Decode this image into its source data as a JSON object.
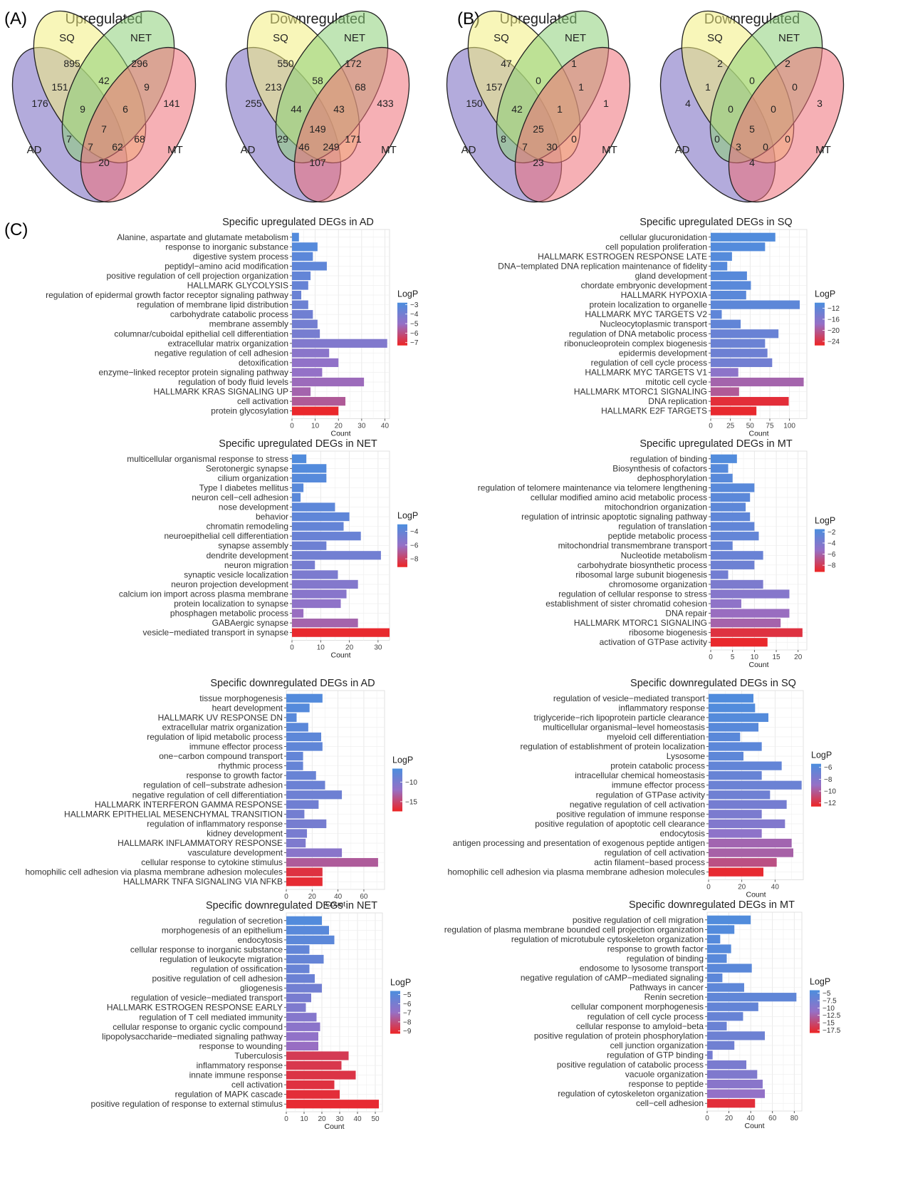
{
  "panel_labels": [
    "(A)",
    "(B)",
    "(C)"
  ],
  "venns": [
    {
      "title": "Upregulated",
      "set_labels": {
        "sq": "SQ",
        "net": "NET",
        "ad": "AD",
        "mt": "MT"
      },
      "regions": {
        "sq": "895",
        "net": "296",
        "ad": "176",
        "mt": "141",
        "ad_sq": "151",
        "sq_net": "42",
        "net_mt": "9",
        "ad_mt": "20",
        "ad_net": "7",
        "sq_mt": "68",
        "ad_sq_net": "9",
        "sq_net_mt": "6",
        "ad_net_mt": "7",
        "ad_sq_mt": "62",
        "all": "7"
      }
    },
    {
      "title": "Downregulated",
      "set_labels": {
        "sq": "SQ",
        "net": "NET",
        "ad": "AD",
        "mt": "MT"
      },
      "regions": {
        "sq": "550",
        "net": "172",
        "ad": "255",
        "mt": "433",
        "ad_sq": "213",
        "sq_net": "58",
        "net_mt": "68",
        "ad_mt": "107",
        "ad_net": "29",
        "sq_mt": "171",
        "ad_sq_net": "44",
        "sq_net_mt": "43",
        "ad_net_mt": "46",
        "ad_sq_mt": "249",
        "all": "149"
      }
    },
    {
      "title": "Upregulated",
      "set_labels": {
        "sq": "SQ",
        "net": "NET",
        "ad": "AD",
        "mt": "MT"
      },
      "regions": {
        "sq": "47",
        "net": "1",
        "ad": "150",
        "mt": "1",
        "ad_sq": "157",
        "sq_net": "0",
        "net_mt": "1",
        "ad_mt": "23",
        "ad_net": "8",
        "sq_mt": "0",
        "ad_sq_net": "42",
        "sq_net_mt": "1",
        "ad_net_mt": "7",
        "ad_sq_mt": "30",
        "all": "25"
      }
    },
    {
      "title": "Downregulated",
      "set_labels": {
        "sq": "SQ",
        "net": "NET",
        "ad": "AD",
        "mt": "MT"
      },
      "regions": {
        "sq": "2",
        "net": "2",
        "ad": "4",
        "mt": "3",
        "ad_sq": "1",
        "sq_net": "0",
        "net_mt": "0",
        "ad_mt": "4",
        "ad_net": "0",
        "sq_mt": "0",
        "ad_sq_net": "0",
        "sq_net_mt": "0",
        "ad_net_mt": "3",
        "ad_sq_mt": "0",
        "all": "5"
      }
    }
  ],
  "chart_data": [
    {
      "type": "bar",
      "orientation": "horizontal",
      "title": "Specific upregulated DEGs in AD",
      "xlabel": "Count",
      "xlim": [
        0,
        42
      ],
      "xticks": [
        0,
        10,
        20,
        30,
        40
      ],
      "legend": {
        "title": "LogP",
        "ticks": [
          -3,
          -4,
          -5,
          -6,
          -7
        ],
        "range": [
          -7.3,
          -2.8
        ]
      },
      "categories": [
        "Alanine, aspartate and glutamate metabolism",
        "response to inorganic substance",
        "digestive system process",
        "peptidyl−amino acid modification",
        "positive regulation of cell projection organization",
        "HALLMARK GLYCOLYSIS",
        "regulation of epidermal growth factor receptor signaling pathway",
        "regulation of membrane lipid distribution",
        "carbohydrate catabolic process",
        "membrane assembly",
        "columnar/cuboidal epithelial cell differentiation",
        "extracellular matrix organization",
        "negative regulation of cell adhesion",
        "detoxification",
        "enzyme−linked receptor protein signaling pathway",
        "regulation of body fluid levels",
        "HALLMARK KRAS SIGNALING UP",
        "cell activation",
        "protein glycosylation"
      ],
      "values": [
        3,
        11,
        9,
        15,
        8,
        7,
        4,
        7,
        9,
        11,
        12,
        41,
        16,
        20,
        13,
        31,
        8,
        23,
        20
      ],
      "logp": [
        -3.0,
        -3.1,
        -3.3,
        -3.4,
        -3.5,
        -3.6,
        -3.7,
        -3.8,
        -3.9,
        -4.0,
        -4.1,
        -4.4,
        -4.7,
        -4.9,
        -5.0,
        -5.2,
        -5.4,
        -5.7,
        -7.2
      ]
    },
    {
      "type": "bar",
      "orientation": "horizontal",
      "title": "Specific upregulated DEGs in SQ",
      "xlabel": "Count",
      "xlim": [
        0,
        122
      ],
      "xticks": [
        0,
        25,
        50,
        75,
        100
      ],
      "legend": {
        "title": "LogP",
        "ticks": [
          -12,
          -16,
          -20,
          -24
        ],
        "range": [
          -25.5,
          -10
        ]
      },
      "categories": [
        "cellular glucuronidation",
        "cell population proliferation",
        "HALLMARK ESTROGEN RESPONSE LATE",
        "DNA−templated DNA replication maintenance of fidelity",
        "gland development",
        "chordate embryonic development",
        "HALLMARK HYPOXIA",
        "protein localization to organelle",
        "HALLMARK MYC TARGETS V2",
        "Nucleocytoplasmic transport",
        "regulation of DNA metabolic process",
        "ribonucleoprotein complex biogenesis",
        "epidermis development",
        "regulation of cell cycle process",
        "HALLMARK MYC TARGETS V1",
        "mitotic cell cycle",
        "HALLMARK MTORC1 SIGNALING",
        "DNA replication",
        "HALLMARK E2F TARGETS"
      ],
      "values": [
        82,
        69,
        27,
        21,
        46,
        51,
        45,
        113,
        14,
        38,
        86,
        69,
        72,
        78,
        35,
        118,
        36,
        99,
        58
      ],
      "logp": [
        -10.5,
        -10.7,
        -10.9,
        -11.0,
        -11.2,
        -11.4,
        -11.5,
        -11.8,
        -12.0,
        -12.2,
        -13.0,
        -13.2,
        -13.5,
        -14.0,
        -16.8,
        -19.0,
        -20.0,
        -24.5,
        -25.0
      ]
    },
    {
      "type": "bar",
      "orientation": "horizontal",
      "title": "Specific upregulated DEGs in NET",
      "xlabel": "Count",
      "xlim": [
        0,
        34
      ],
      "xticks": [
        0,
        10,
        20,
        30
      ],
      "legend": {
        "title": "LogP",
        "ticks": [
          -4,
          -6,
          -8
        ],
        "range": [
          -9.2,
          -3.0
        ]
      },
      "categories": [
        "multicellular organismal response to stress",
        "Serotonergic synapse",
        "cilium organization",
        "Type I diabetes mellitus",
        "neuron cell−cell adhesion",
        "nose development",
        "behavior",
        "chromatin remodeling",
        "neuroepithelial cell differentiation",
        "synapse assembly",
        "dendrite development",
        "neuron migration",
        "synaptic vesicle localization",
        "neuron projection development",
        "calcium ion import across plasma membrane",
        "protein localization to synapse",
        "phosphagen metabolic process",
        "GABAergic synapse",
        "vesicle−mediated transport in synapse"
      ],
      "values": [
        5,
        12,
        12,
        4,
        3,
        15,
        20,
        18,
        24,
        12,
        31,
        8,
        16,
        23,
        19,
        17,
        4,
        23,
        34
      ],
      "logp": [
        -3.2,
        -3.3,
        -3.4,
        -3.5,
        -3.6,
        -3.7,
        -3.8,
        -4.0,
        -4.2,
        -4.4,
        -4.6,
        -4.8,
        -5.0,
        -5.3,
        -5.5,
        -5.8,
        -6.2,
        -6.6,
        -9.0
      ]
    },
    {
      "type": "bar",
      "orientation": "horizontal",
      "title": "Specific upregulated DEGs in MT",
      "xlabel": "Count",
      "xlim": [
        0,
        22
      ],
      "xticks": [
        0,
        5,
        10,
        15,
        20
      ],
      "legend": {
        "title": "LogP",
        "ticks": [
          -2,
          -4,
          -6,
          -8
        ],
        "range": [
          -9.2,
          -1.5
        ]
      },
      "categories": [
        "regulation of binding",
        "Biosynthesis of cofactors",
        "dephosphorylation",
        "regulation of telomere maintenance via telomere lengthening",
        "cellular modified amino acid metabolic process",
        "mitochondrion organization",
        "regulation of intrinsic apoptotic signaling pathway",
        "regulation of translation",
        "peptide metabolic process",
        "mitochondrial transmembrane transport",
        "Nucleotide metabolism",
        "carbohydrate biosynthetic process",
        "ribosomal large subunit biogenesis",
        "chromosome organization",
        "regulation of cellular response to stress",
        "establishment of sister chromatid cohesion",
        "DNA repair",
        "HALLMARK MTORC1 SIGNALING",
        "ribosome biogenesis",
        "activation of GTPase activity"
      ],
      "values": [
        6,
        4,
        5,
        10,
        9,
        8,
        9,
        10,
        11,
        5,
        12,
        10,
        4,
        12,
        18,
        7,
        18,
        16,
        21,
        13
      ],
      "logp": [
        -1.8,
        -2.0,
        -2.1,
        -2.2,
        -2.3,
        -2.4,
        -2.5,
        -2.6,
        -2.7,
        -2.8,
        -3.0,
        -3.2,
        -3.5,
        -4.0,
        -4.5,
        -5.0,
        -5.5,
        -6.0,
        -8.5,
        -9.0
      ]
    },
    {
      "type": "bar",
      "orientation": "horizontal",
      "title": "Specific downregulated DEGs in AD",
      "xlabel": "Count",
      "xlim": [
        0,
        76
      ],
      "xticks": [
        0,
        20,
        40,
        60
      ],
      "legend": {
        "title": "LogP",
        "ticks": [
          -10,
          -15
        ],
        "range": [
          -17.5,
          -6.5
        ]
      },
      "categories": [
        "tissue morphogenesis",
        "heart development",
        "HALLMARK UV RESPONSE DN",
        "extracellular matrix organization",
        "regulation of lipid metabolic process",
        "immune effector process",
        "one−carbon compound transport",
        "rhythmic process",
        "response to growth factor",
        "regulation of cell−substrate adhesion",
        "negative regulation of cell differentiation",
        "HALLMARK INTERFERON GAMMA RESPONSE",
        "HALLMARK EPITHELIAL MESENCHYMAL TRANSITION",
        "regulation of inflammatory response",
        "kidney development",
        "HALLMARK INFLAMMATORY RESPONSE",
        "vasculature development",
        "cellular response to cytokine stimulus",
        "homophilic cell adhesion via plasma membrane adhesion molecules",
        "HALLMARK TNFA SIGNALING VIA NFKB"
      ],
      "values": [
        28,
        18,
        8,
        17,
        27,
        28,
        13,
        13,
        23,
        30,
        43,
        25,
        14,
        31,
        16,
        15,
        43,
        71,
        28,
        28
      ],
      "logp": [
        -7.0,
        -7.2,
        -7.4,
        -7.6,
        -7.8,
        -8.0,
        -8.2,
        -8.4,
        -8.6,
        -8.8,
        -9.0,
        -9.2,
        -9.4,
        -9.6,
        -9.8,
        -10.2,
        -11.0,
        -13.5,
        -16.5,
        -17.0
      ]
    },
    {
      "type": "bar",
      "orientation": "horizontal",
      "title": "Specific downregulated DEGs in SQ",
      "xlabel": "Count",
      "xlim": [
        0,
        57
      ],
      "xticks": [
        0,
        20,
        40
      ],
      "legend": {
        "title": "LogP",
        "ticks": [
          -6,
          -8,
          -10,
          -12
        ],
        "range": [
          -12.6,
          -5.4
        ]
      },
      "categories": [
        "regulation of vesicle−mediated transport",
        "inflammatory response",
        "triglyceride−rich lipoprotein particle clearance",
        "multicellular organismal−level homeostasis",
        "myeloid cell differentiation",
        "regulation of establishment of protein localization",
        "Lysosome",
        "protein catabolic process",
        "intracellular chemical homeostasis",
        "immune effector process",
        "regulation of GTPase activity",
        "negative regulation of cell activation",
        "positive regulation of immune response",
        "positive regulation of apoptotic cell clearance",
        "endocytosis",
        "antigen processing and presentation of exogenous peptide antigen",
        "regulation of cell activation",
        "actin filament−based process",
        "homophilic cell adhesion via plasma membrane adhesion molecules"
      ],
      "values": [
        27,
        28,
        36,
        30,
        19,
        32,
        21,
        44,
        32,
        56,
        37,
        47,
        32,
        46,
        32,
        50,
        51,
        41,
        33
      ],
      "logp": [
        -5.6,
        -5.7,
        -5.8,
        -6.0,
        -6.1,
        -6.2,
        -6.3,
        -6.5,
        -6.7,
        -6.9,
        -7.1,
        -7.4,
        -7.7,
        -8.0,
        -8.6,
        -9.5,
        -9.7,
        -10.5,
        -12.3
      ]
    },
    {
      "type": "bar",
      "orientation": "horizontal",
      "title": "Specific downregulated DEGs in NET",
      "xlabel": "Count",
      "xlim": [
        0,
        54
      ],
      "xticks": [
        0,
        10,
        20,
        30,
        40,
        50
      ],
      "legend": {
        "title": "LogP",
        "ticks": [
          -5,
          -6,
          -7,
          -8,
          -9
        ],
        "range": [
          -9.3,
          -4.6
        ]
      },
      "categories": [
        "regulation of secretion",
        "morphogenesis of an epithelium",
        "endocytosis",
        "cellular response to inorganic substance",
        "regulation of leukocyte migration",
        "regulation of ossification",
        "positive regulation of cell adhesion",
        "gliogenesis",
        "regulation of vesicle−mediated transport",
        "HALLMARK ESTROGEN RESPONSE EARLY",
        "regulation of T cell mediated immunity",
        "cellular response to organic cyclic compound",
        "lipopolysaccharide−mediated signaling pathway",
        "response to wounding",
        "Tuberculosis",
        "inflammatory response",
        "innate immune response",
        "cell activation",
        "regulation of MAPK cascade",
        "positive regulation of response to external stimulus"
      ],
      "values": [
        20,
        24,
        27,
        13,
        21,
        13,
        16,
        20,
        14,
        11,
        17,
        19,
        18,
        18,
        35,
        31,
        39,
        27,
        30,
        52
      ],
      "logp": [
        -4.8,
        -5.0,
        -5.1,
        -5.3,
        -5.4,
        -5.5,
        -5.6,
        -5.8,
        -6.0,
        -6.2,
        -6.4,
        -6.6,
        -6.8,
        -7.0,
        -8.6,
        -8.7,
        -8.8,
        -8.9,
        -9.0,
        -9.1
      ]
    },
    {
      "type": "bar",
      "orientation": "horizontal",
      "title": "Specific downregulated DEGs in MT",
      "xlabel": "Count",
      "xlim": [
        0,
        87
      ],
      "xticks": [
        0,
        20,
        40,
        60,
        80
      ],
      "legend": {
        "title": "LogP",
        "ticks": [
          -5.0,
          -7.5,
          -10.0,
          -12.5,
          -15.0,
          -17.5
        ],
        "range": [
          -18.5,
          -4.0
        ]
      },
      "categories": [
        "positive regulation of cell migration",
        "regulation of plasma membrane bounded cell projection organization",
        "regulation of microtubule cytoskeleton organization",
        "response to growth factor",
        "regulation of binding",
        "endosome to lysosome transport",
        "negative regulation of cAMP−mediated signaling",
        "Pathways in cancer",
        "Renin secretion",
        "cellular component morphogenesis",
        "regulation of cell cycle process",
        "cellular response to amyloid−beta",
        "positive regulation of protein phosphorylation",
        "cell junction organization",
        "regulation of GTP binding",
        "positive regulation of catabolic process",
        "vacuole organization",
        "response to peptide",
        "regulation of cytoskeleton organization",
        "cell−cell adhesion"
      ],
      "values": [
        40,
        25,
        12,
        22,
        18,
        41,
        14,
        34,
        82,
        47,
        33,
        18,
        53,
        25,
        5,
        36,
        46,
        51,
        53,
        44
      ],
      "logp": [
        -4.5,
        -4.7,
        -4.9,
        -5.0,
        -5.2,
        -5.4,
        -5.6,
        -5.8,
        -6.0,
        -6.3,
        -6.6,
        -6.9,
        -7.2,
        -7.5,
        -8.0,
        -8.5,
        -9.0,
        -10.0,
        -11.0,
        -17.5
      ]
    }
  ]
}
